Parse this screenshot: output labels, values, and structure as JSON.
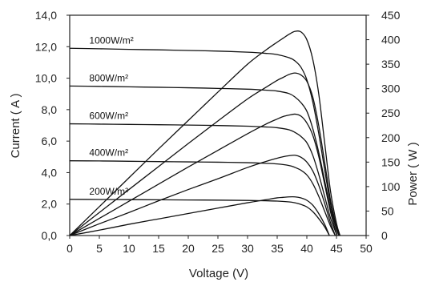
{
  "chart_data": {
    "type": "line",
    "xlabel": "Voltage (V)",
    "ylabel_left": "Current ( A )",
    "ylabel_right": "Power ( W )",
    "xlim": [
      0,
      50
    ],
    "ylim_left": [
      0,
      14
    ],
    "ylim_right": [
      0,
      450
    ],
    "x_ticks": [
      "0",
      "5",
      "10",
      "15",
      "20",
      "25",
      "30",
      "35",
      "40",
      "45",
      "50"
    ],
    "y_left_ticks": [
      "0,0",
      "2,0",
      "4,0",
      "6,0",
      "8,0",
      "10,0",
      "12,0",
      "14,0"
    ],
    "y_right_ticks": [
      "0",
      "50",
      "100",
      "150",
      "200",
      "250",
      "300",
      "350",
      "400",
      "450"
    ],
    "grid": false,
    "series": [
      {
        "name": "1000W/m²",
        "current": {
          "x": [
            0,
            5,
            10,
            15,
            20,
            25,
            30,
            33,
            35,
            37,
            38,
            39,
            40,
            41,
            42,
            43,
            44,
            45,
            45.6
          ],
          "y": [
            11.9,
            11.87,
            11.83,
            11.8,
            11.76,
            11.72,
            11.65,
            11.58,
            11.5,
            11.3,
            11.1,
            10.7,
            9.9,
            8.5,
            6.5,
            4.2,
            2.0,
            0.5,
            0
          ]
        },
        "power": {
          "x": [
            0,
            5,
            10,
            15,
            20,
            25,
            30,
            33,
            35,
            36,
            37,
            38,
            39,
            40,
            41,
            42,
            43,
            44,
            45,
            45.6
          ],
          "y": [
            0,
            59,
            118,
            177,
            235,
            293,
            350,
            378,
            395,
            403,
            411,
            417,
            416,
            400,
            360,
            290,
            190,
            90,
            25,
            0
          ]
        }
      },
      {
        "name": "800W/m²",
        "current": {
          "x": [
            0,
            5,
            10,
            15,
            20,
            25,
            30,
            33,
            35,
            37,
            38,
            39,
            40,
            41,
            42,
            43,
            44,
            45,
            45.4
          ],
          "y": [
            9.5,
            9.48,
            9.45,
            9.42,
            9.39,
            9.35,
            9.3,
            9.24,
            9.18,
            9.02,
            8.8,
            8.45,
            7.9,
            6.8,
            5.3,
            3.5,
            1.7,
            0.4,
            0
          ]
        },
        "power": {
          "x": [
            0,
            5,
            10,
            15,
            20,
            25,
            30,
            33,
            35,
            36,
            37,
            38,
            39,
            40,
            41,
            42,
            43,
            44,
            45,
            45.4
          ],
          "y": [
            0,
            47,
            94,
            141,
            188,
            234,
            279,
            302,
            317,
            323,
            329,
            332,
            328,
            315,
            283,
            225,
            150,
            72,
            18,
            0
          ]
        }
      },
      {
        "name": "600W/m²",
        "current": {
          "x": [
            0,
            5,
            10,
            15,
            20,
            25,
            30,
            33,
            35,
            37,
            38,
            39,
            40,
            41,
            42,
            43,
            44,
            45.1
          ],
          "y": [
            7.1,
            7.08,
            7.06,
            7.04,
            7.02,
            6.99,
            6.95,
            6.9,
            6.85,
            6.72,
            6.55,
            6.3,
            5.9,
            5.1,
            3.9,
            2.5,
            1.1,
            0
          ]
        },
        "power": {
          "x": [
            0,
            5,
            10,
            15,
            20,
            25,
            30,
            33,
            35,
            36,
            37,
            38,
            39,
            40,
            41,
            42,
            43,
            44,
            45.1
          ],
          "y": [
            0,
            35,
            70,
            105,
            140,
            174,
            208,
            227,
            238,
            243,
            246,
            248,
            244,
            230,
            205,
            162,
            105,
            48,
            0
          ]
        }
      },
      {
        "name": "400W/m²",
        "current": {
          "x": [
            0,
            5,
            10,
            15,
            20,
            25,
            30,
            33,
            35,
            37,
            38,
            39,
            40,
            41,
            42,
            43,
            44,
            44.8
          ],
          "y": [
            4.75,
            4.74,
            4.72,
            4.7,
            4.68,
            4.66,
            4.63,
            4.59,
            4.55,
            4.45,
            4.33,
            4.15,
            3.85,
            3.3,
            2.5,
            1.55,
            0.6,
            0
          ]
        },
        "power": {
          "x": [
            0,
            5,
            10,
            15,
            20,
            25,
            30,
            33,
            35,
            36,
            37,
            38,
            39,
            40,
            41,
            42,
            43,
            44,
            44.8
          ],
          "y": [
            0,
            24,
            47,
            71,
            94,
            116,
            139,
            151,
            158,
            161,
            163,
            164,
            160,
            150,
            132,
            103,
            66,
            26,
            0
          ]
        }
      },
      {
        "name": "200W/m²",
        "current": {
          "x": [
            0,
            5,
            10,
            15,
            20,
            25,
            30,
            33,
            35,
            37,
            38,
            39,
            40,
            41,
            42,
            43,
            43.8
          ],
          "y": [
            2.3,
            2.29,
            2.28,
            2.27,
            2.26,
            2.25,
            2.23,
            2.21,
            2.19,
            2.14,
            2.08,
            1.98,
            1.82,
            1.52,
            1.08,
            0.55,
            0
          ]
        },
        "power": {
          "x": [
            0,
            5,
            10,
            15,
            20,
            25,
            30,
            33,
            35,
            36,
            37,
            38,
            39,
            40,
            41,
            42,
            43,
            43.8
          ],
          "y": [
            0,
            11,
            23,
            34,
            45,
            56,
            67,
            73,
            77,
            78,
            79,
            79,
            77,
            72,
            62,
            45,
            23,
            0
          ]
        }
      }
    ]
  }
}
